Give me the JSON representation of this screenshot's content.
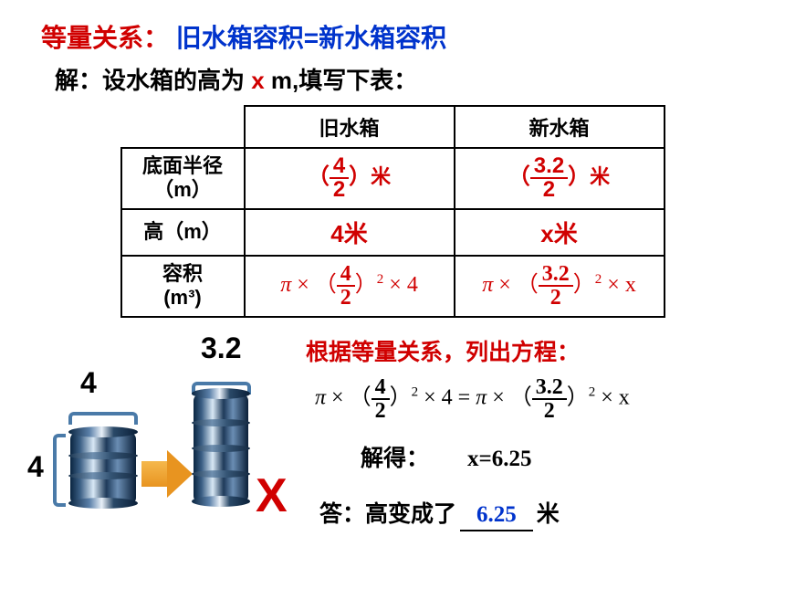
{
  "title": {
    "label": "等量关系：",
    "relation": "旧水箱容积=新水箱容积"
  },
  "sub": {
    "prefix": "解：设水箱的高为 ",
    "var": "x",
    "unit": " m,",
    "suffix": "填写下表："
  },
  "table": {
    "cols": [
      "旧水箱",
      "新水箱"
    ],
    "rows": {
      "radius": {
        "label": "底面半径（m）",
        "old_num": "4",
        "old_den": "2",
        "new_num": "3.2",
        "new_den": "2",
        "unit": "米"
      },
      "height": {
        "label": "高（m）",
        "old": "4米",
        "new": "x米"
      },
      "volume": {
        "label_l1": "容积",
        "label_l2": "(m³)",
        "old_num": "4",
        "old_den": "2",
        "old_mult": "4",
        "new_num": "3.2",
        "new_den": "2",
        "new_mult": "x"
      }
    }
  },
  "labels": {
    "w32": "3.2",
    "w4": "4",
    "h4": "4",
    "bigX": "X"
  },
  "instr": "根据等量关系，列出方程：",
  "equation": {
    "l_num": "4",
    "l_den": "2",
    "l_mult": "4",
    "r_num": "3.2",
    "r_den": "2",
    "r_mult": "x"
  },
  "solve": {
    "label": "解得：",
    "result": "x=6.25"
  },
  "answer": {
    "prefix": "答：高变成了",
    "value": "6.25",
    "suffix": "米"
  },
  "colors": {
    "red": "#d00000",
    "blue": "#0033cc",
    "barrel_dark": "#0a2540",
    "arrow": "#e89420",
    "bracket": "#4a7aa8"
  }
}
